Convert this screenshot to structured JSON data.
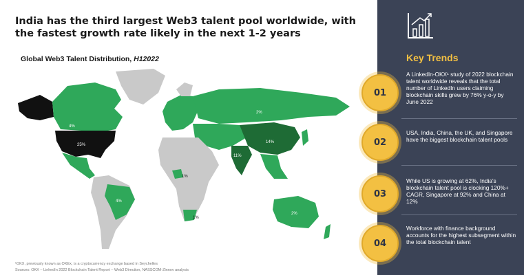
{
  "headline": "India has the third largest Web3 talent pool worldwide, with the fastest growth rate likely in the next 1-2 years",
  "map": {
    "title": "Global Web3 Talent Distribution,",
    "period": "H12022",
    "labels": {
      "usa": "25%",
      "canada": "4%",
      "russia": "2%",
      "china": "14%",
      "india": "11%",
      "brazil": "4%",
      "australia": "2%",
      "nigeria": "1%",
      "south_africa": "1%"
    },
    "colors": {
      "top": "#111111",
      "dark": "#1e6b35",
      "medium": "#2fa85a",
      "light": "#c9c9c9"
    }
  },
  "footnotes": [
    "¹OKX, previously known as OKEx, is a cryptocurrency exchange based in Seychelles",
    "Sources: OKX – LinkedIn 2022 Blockchain Talent Report – Web3 Direction, NASSCOM-Zinnov analysis"
  ],
  "panel": {
    "title": "Key Trends",
    "icon": "growth-chart-icon",
    "accent": "#f3c042",
    "background": "#3b4356",
    "trends": [
      {
        "number": "01",
        "text": "A LinkedIn-OKX¹ study of 2022 blockchain talent worldwide reveals that the total number of LinkedIn users claiming blockchain skills grew by 76% y-o-y by June 2022"
      },
      {
        "number": "02",
        "text": "USA, India, China, the UK, and Singapore have the biggest blockchain talent pools"
      },
      {
        "number": "03",
        "text": "While US is growing at 62%, India's blockchain talent pool is clocking 120%+ CAGR, Singapore at 92% and China at 12%"
      },
      {
        "number": "04",
        "text": "Workforce with finance background accounts for the highest subsegment within the total blockchain talent"
      }
    ]
  }
}
